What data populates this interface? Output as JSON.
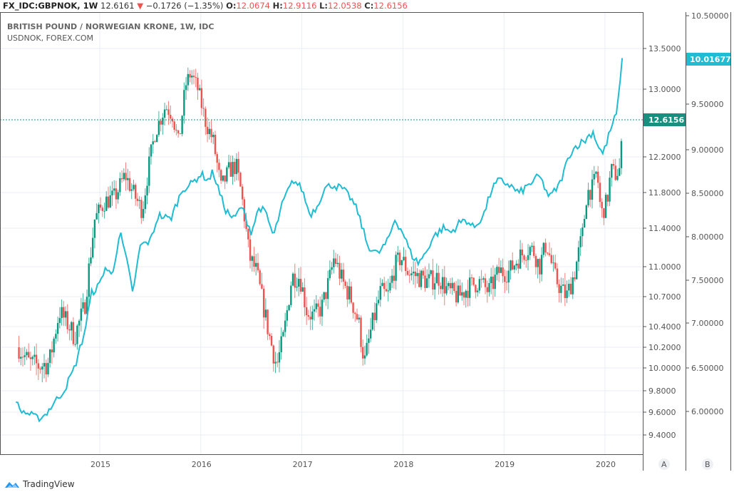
{
  "header": {
    "symbol": "FX_IDC:GBPNOK, 1W",
    "last": "12.6161",
    "change_arrow": "▼",
    "change": "−0.1726 (−1.35%)",
    "o_label": "O:",
    "o": "12.0674",
    "h_label": "H:",
    "h": "12.9116",
    "l_label": "L:",
    "l": "12.0538",
    "c_label": "C:",
    "c": "12.6156"
  },
  "legend": {
    "main": "BRITISH POUND / NORWEGIAN KRONE, 1W, IDC",
    "compare": "USDNOK, FOREX.COM"
  },
  "footer": {
    "brand": "TradingView"
  },
  "colors": {
    "up": "#26a69a",
    "down": "#ef5350",
    "up_dark": "#089981",
    "line": "#1fbcd2",
    "grid": "#e8eef3",
    "axis": "#555555",
    "last_price_bg": "#17907f",
    "compare_bg": "#1fbcd2"
  },
  "chart_data": {
    "type": "candlestick+line",
    "title": "BRITISH POUND / NORWEGIAN KRONE, 1W, IDC",
    "subtitle": "USDNOK, FOREX.COM",
    "x_ticks": [
      "2015",
      "2016",
      "2017",
      "2018",
      "2019",
      "2020"
    ],
    "scale_a_label": "A",
    "scale_b_label": "B",
    "axis_a_ticks": [
      "13.5000",
      "13.0000",
      "12.2000",
      "11.8000",
      "11.4000",
      "11.0000",
      "10.7000",
      "10.4000",
      "10.2000",
      "10.0000",
      "9.8000",
      "9.6000",
      "9.4000"
    ],
    "axis_b_ticks": [
      "10.50000",
      "9.50000",
      "9.00000",
      "8.50000",
      "8.00000",
      "7.50000",
      "7.00000",
      "6.50000",
      "6.00000"
    ],
    "last_price_a": "12.6156",
    "last_price_b": "10.01677",
    "series": [
      {
        "name": "GBPNOK (candles, weekly close waypoints)",
        "axis": "A",
        "points": [
          [
            2014.2,
            10.2
          ],
          [
            2014.3,
            10.05
          ],
          [
            2014.4,
            10.02
          ],
          [
            2014.5,
            10.05
          ],
          [
            2014.6,
            10.55
          ],
          [
            2014.7,
            10.4
          ],
          [
            2014.75,
            10.3
          ],
          [
            2014.85,
            10.6
          ],
          [
            2014.95,
            11.5
          ],
          [
            2015.05,
            11.7
          ],
          [
            2015.15,
            11.75
          ],
          [
            2015.25,
            12.0
          ],
          [
            2015.35,
            11.75
          ],
          [
            2015.42,
            11.6
          ],
          [
            2015.5,
            12.2
          ],
          [
            2015.55,
            12.5
          ],
          [
            2015.65,
            12.8
          ],
          [
            2015.72,
            12.7
          ],
          [
            2015.78,
            12.35
          ],
          [
            2015.85,
            13.05
          ],
          [
            2015.9,
            13.2
          ],
          [
            2015.97,
            13.0
          ],
          [
            2016.05,
            12.6
          ],
          [
            2016.12,
            12.4
          ],
          [
            2016.2,
            11.85
          ],
          [
            2016.28,
            12.05
          ],
          [
            2016.35,
            12.1
          ],
          [
            2016.4,
            11.8
          ],
          [
            2016.48,
            11.1
          ],
          [
            2016.55,
            10.95
          ],
          [
            2016.6,
            10.7
          ],
          [
            2016.68,
            10.3
          ],
          [
            2016.75,
            10.02
          ],
          [
            2016.82,
            10.3
          ],
          [
            2016.9,
            10.9
          ],
          [
            2016.98,
            10.9
          ],
          [
            2017.05,
            10.55
          ],
          [
            2017.12,
            10.5
          ],
          [
            2017.2,
            10.6
          ],
          [
            2017.28,
            10.9
          ],
          [
            2017.32,
            11.1
          ],
          [
            2017.4,
            10.85
          ],
          [
            2017.48,
            10.7
          ],
          [
            2017.56,
            10.45
          ],
          [
            2017.62,
            10.05
          ],
          [
            2017.68,
            10.35
          ],
          [
            2017.78,
            10.75
          ],
          [
            2017.85,
            10.7
          ],
          [
            2017.92,
            11.0
          ],
          [
            2017.98,
            11.1
          ],
          [
            2018.05,
            10.95
          ],
          [
            2018.15,
            10.9
          ],
          [
            2018.25,
            10.85
          ],
          [
            2018.35,
            10.9
          ],
          [
            2018.45,
            10.75
          ],
          [
            2018.55,
            10.7
          ],
          [
            2018.65,
            10.8
          ],
          [
            2018.75,
            10.85
          ],
          [
            2018.85,
            10.75
          ],
          [
            2018.95,
            10.95
          ],
          [
            2019.05,
            10.95
          ],
          [
            2019.15,
            11.1
          ],
          [
            2019.25,
            11.2
          ],
          [
            2019.3,
            11.15
          ],
          [
            2019.35,
            11.0
          ],
          [
            2019.42,
            11.25
          ],
          [
            2019.5,
            10.9
          ],
          [
            2019.58,
            10.75
          ],
          [
            2019.62,
            10.7
          ],
          [
            2019.7,
            10.95
          ],
          [
            2019.78,
            11.35
          ],
          [
            2019.82,
            11.8
          ],
          [
            2019.88,
            11.85
          ],
          [
            2019.92,
            12.05
          ],
          [
            2019.96,
            11.55
          ],
          [
            2020.02,
            11.7
          ],
          [
            2020.06,
            12.05
          ],
          [
            2020.1,
            12.0
          ],
          [
            2020.15,
            12.07
          ],
          [
            2020.17,
            12.62
          ]
        ]
      },
      {
        "name": "USDNOK",
        "axis": "B",
        "points": [
          [
            2014.17,
            6.15
          ],
          [
            2014.2,
            6.02
          ],
          [
            2014.3,
            5.97
          ],
          [
            2014.38,
            5.92
          ],
          [
            2014.45,
            5.95
          ],
          [
            2014.55,
            6.1
          ],
          [
            2014.65,
            6.25
          ],
          [
            2014.75,
            6.5
          ],
          [
            2014.85,
            6.9
          ],
          [
            2014.92,
            7.35
          ],
          [
            2015.0,
            7.45
          ],
          [
            2015.05,
            7.65
          ],
          [
            2015.12,
            7.55
          ],
          [
            2015.2,
            8.05
          ],
          [
            2015.27,
            7.7
          ],
          [
            2015.33,
            7.35
          ],
          [
            2015.4,
            7.9
          ],
          [
            2015.5,
            7.95
          ],
          [
            2015.58,
            8.25
          ],
          [
            2015.7,
            8.2
          ],
          [
            2015.75,
            8.35
          ],
          [
            2015.82,
            8.55
          ],
          [
            2015.9,
            8.6
          ],
          [
            2016.0,
            8.72
          ],
          [
            2016.08,
            8.65
          ],
          [
            2016.12,
            8.75
          ],
          [
            2016.2,
            8.45
          ],
          [
            2016.25,
            8.3
          ],
          [
            2016.33,
            8.2
          ],
          [
            2016.4,
            8.35
          ],
          [
            2016.5,
            8.05
          ],
          [
            2016.58,
            8.35
          ],
          [
            2016.65,
            8.25
          ],
          [
            2016.72,
            8.0
          ],
          [
            2016.8,
            8.35
          ],
          [
            2016.85,
            8.5
          ],
          [
            2016.92,
            8.65
          ],
          [
            2017.0,
            8.55
          ],
          [
            2017.08,
            8.25
          ],
          [
            2017.15,
            8.35
          ],
          [
            2017.22,
            8.55
          ],
          [
            2017.3,
            8.6
          ],
          [
            2017.4,
            8.55
          ],
          [
            2017.48,
            8.45
          ],
          [
            2017.55,
            8.3
          ],
          [
            2017.65,
            7.9
          ],
          [
            2017.75,
            7.8
          ],
          [
            2017.85,
            7.95
          ],
          [
            2017.92,
            8.2
          ],
          [
            2018.0,
            8.05
          ],
          [
            2018.08,
            7.8
          ],
          [
            2018.15,
            7.7
          ],
          [
            2018.22,
            7.8
          ],
          [
            2018.3,
            8.0
          ],
          [
            2018.4,
            8.1
          ],
          [
            2018.48,
            8.05
          ],
          [
            2018.55,
            8.15
          ],
          [
            2018.62,
            8.2
          ],
          [
            2018.7,
            8.1
          ],
          [
            2018.8,
            8.25
          ],
          [
            2018.88,
            8.55
          ],
          [
            2018.95,
            8.65
          ],
          [
            2019.05,
            8.6
          ],
          [
            2019.15,
            8.5
          ],
          [
            2019.25,
            8.6
          ],
          [
            2019.35,
            8.7
          ],
          [
            2019.45,
            8.45
          ],
          [
            2019.55,
            8.6
          ],
          [
            2019.65,
            8.95
          ],
          [
            2019.72,
            9.05
          ],
          [
            2019.8,
            9.1
          ],
          [
            2019.88,
            9.2
          ],
          [
            2019.93,
            9.05
          ],
          [
            2019.98,
            8.95
          ],
          [
            2020.05,
            9.2
          ],
          [
            2020.08,
            9.3
          ],
          [
            2020.12,
            9.4
          ],
          [
            2020.15,
            9.8
          ],
          [
            2020.17,
            10.02
          ]
        ]
      }
    ]
  }
}
